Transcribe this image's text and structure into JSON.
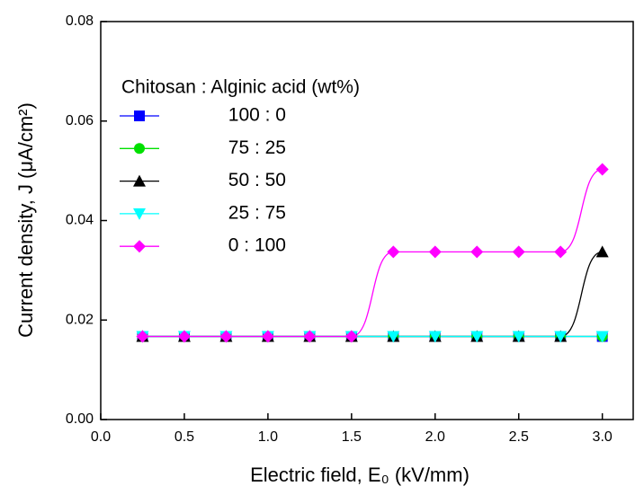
{
  "chart_data": {
    "type": "line",
    "x_label": "Electric field, E₀ (kV/mm)",
    "y_label": "Current density, J (μA/cm²)",
    "legend_title": "Chitosan : Alginic acid (wt%)",
    "legend_position": "upper left",
    "x": [
      0.25,
      0.5,
      0.75,
      1.0,
      1.25,
      1.5,
      1.75,
      2.0,
      2.25,
      2.5,
      2.75,
      3.0
    ],
    "series": [
      {
        "name": "100 : 0",
        "color": "#0000ff",
        "marker": "square",
        "values": [
          0.0167,
          0.0167,
          0.0167,
          0.0167,
          0.0167,
          0.0167,
          0.0167,
          0.0167,
          0.0167,
          0.0167,
          0.0167,
          0.0167
        ]
      },
      {
        "name": "75 : 25",
        "color": "#00e000",
        "marker": "circle",
        "values": [
          0.0167,
          0.0167,
          0.0167,
          0.0167,
          0.0167,
          0.0167,
          0.0167,
          0.0167,
          0.0167,
          0.0167,
          0.0167,
          0.0167
        ]
      },
      {
        "name": "50 : 50",
        "color": "#000000",
        "marker": "triangle-up",
        "values": [
          0.0167,
          0.0167,
          0.0167,
          0.0167,
          0.0167,
          0.0167,
          0.0167,
          0.0167,
          0.0167,
          0.0167,
          0.0167,
          0.0337
        ]
      },
      {
        "name": "25 : 75",
        "color": "#00ffff",
        "marker": "triangle-down",
        "values": [
          0.0167,
          0.0167,
          0.0167,
          0.0167,
          0.0167,
          0.0167,
          0.0167,
          0.0167,
          0.0167,
          0.0167,
          0.0167,
          0.0167
        ]
      },
      {
        "name": "0 : 100",
        "color": "#ff00ff",
        "marker": "diamond",
        "values": [
          0.0167,
          0.0167,
          0.0167,
          0.0167,
          0.0167,
          0.0167,
          0.0337,
          0.0337,
          0.0337,
          0.0337,
          0.0337,
          0.0503
        ]
      }
    ],
    "xlim": [
      0,
      3.19
    ],
    "ylim": [
      0,
      0.08
    ],
    "xticks": [
      {
        "value": 0,
        "label": "0.0"
      },
      {
        "value": 0.5,
        "label": "0.5"
      },
      {
        "value": 1,
        "label": "1.0"
      },
      {
        "value": 1.5,
        "label": "1.5"
      },
      {
        "value": 2,
        "label": "2.0"
      },
      {
        "value": 2.5,
        "label": "2.5"
      },
      {
        "value": 3,
        "label": "3.0"
      }
    ],
    "yticks": [
      {
        "value": 0,
        "label": "0.00"
      },
      {
        "value": 0.02,
        "label": "0.02"
      },
      {
        "value": 0.04,
        "label": "0.04"
      },
      {
        "value": 0.06,
        "label": "0.06"
      },
      {
        "value": 0.08,
        "label": "0.08"
      }
    ]
  }
}
